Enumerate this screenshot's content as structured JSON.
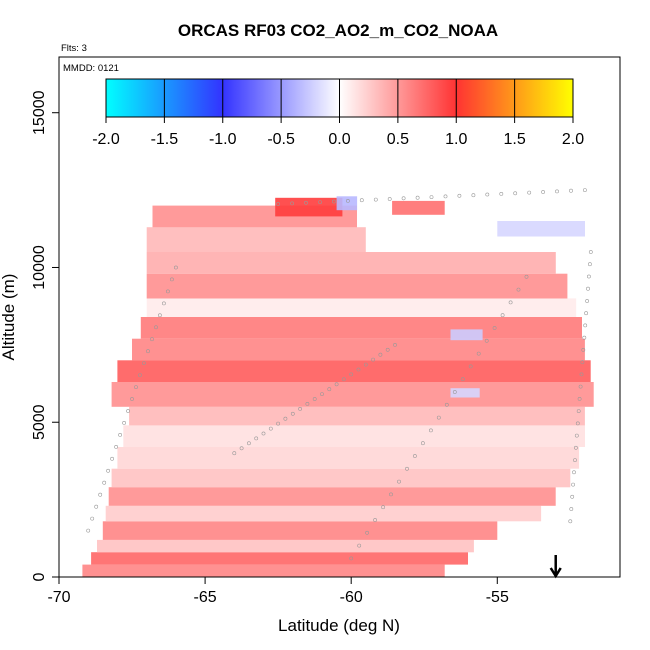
{
  "chart_data": {
    "type": "heatmap",
    "title": "ORCAS RF03 CO2_AO2_m_CO2_NOAA",
    "annotations": {
      "flights": "Flts: 3",
      "date": "MMDD: 0121"
    },
    "xlabel": "Latitude (deg N)",
    "ylabel": "Altitude (m)",
    "xlim": [
      -70,
      -50.8
    ],
    "ylim": [
      0,
      16800
    ],
    "x_ticks": [
      -70,
      -65,
      -60,
      -55
    ],
    "x_tick_labels": [
      "-70",
      "-65",
      "-60",
      "-55"
    ],
    "y_ticks": [
      0,
      5000,
      10000,
      15000
    ],
    "y_tick_labels": [
      "0",
      "5000",
      "10000",
      "15000"
    ],
    "colorbar": {
      "min": -2.0,
      "max": 2.0,
      "ticks": [
        -2.0,
        -1.5,
        -1.0,
        -0.5,
        0.0,
        0.5,
        1.0,
        1.5,
        2.0
      ],
      "tick_labels": [
        "-2.0",
        "-1.5",
        "-1.0",
        "-0.5",
        "0.0",
        "0.5",
        "1.0",
        "1.5",
        "2.0"
      ],
      "colors": [
        "#00ffff",
        "#3333ff",
        "#ffffff",
        "#ff3333",
        "#ffff00"
      ]
    },
    "grid": false,
    "marker": {
      "latitude": -53,
      "altitude": 0,
      "symbol": "down-arrow"
    },
    "bands": [
      {
        "alt_bottom": 0,
        "alt_top": 400,
        "lat_start": -69.2,
        "lat_end": -56.8,
        "value": 0.6
      },
      {
        "alt_bottom": 400,
        "alt_top": 800,
        "lat_start": -68.9,
        "lat_end": -56.0,
        "value": 0.75
      },
      {
        "alt_bottom": 800,
        "alt_top": 1200,
        "lat_start": -68.7,
        "lat_end": -55.8,
        "value": 0.3
      },
      {
        "alt_bottom": 1200,
        "alt_top": 1800,
        "lat_start": -68.5,
        "lat_end": -55.0,
        "value": 0.6
      },
      {
        "alt_bottom": 1800,
        "alt_top": 2300,
        "lat_start": -68.4,
        "lat_end": -53.5,
        "value": 0.25
      },
      {
        "alt_bottom": 2300,
        "alt_top": 2900,
        "lat_start": -68.3,
        "lat_end": -53.0,
        "value": 0.55
      },
      {
        "alt_bottom": 2900,
        "alt_top": 3500,
        "lat_start": -68.2,
        "lat_end": -52.5,
        "value": 0.3
      },
      {
        "alt_bottom": 3500,
        "alt_top": 4200,
        "lat_start": -68.0,
        "lat_end": -52.2,
        "value": 0.2
      },
      {
        "alt_bottom": 4200,
        "alt_top": 4900,
        "lat_start": -67.8,
        "lat_end": -52.0,
        "value": 0.15
      },
      {
        "alt_bottom": 4900,
        "alt_top": 5500,
        "lat_start": -67.6,
        "lat_end": -52.0,
        "value": 0.35
      },
      {
        "alt_bottom": 5500,
        "alt_top": 6300,
        "lat_start": -68.2,
        "lat_end": -51.7,
        "value": 0.55
      },
      {
        "alt_bottom": 6300,
        "alt_top": 7000,
        "lat_start": -68.0,
        "lat_end": -51.8,
        "value": 0.8
      },
      {
        "alt_bottom": 7000,
        "alt_top": 7700,
        "lat_start": -67.5,
        "lat_end": -52.0,
        "value": 0.6
      },
      {
        "alt_bottom": 7700,
        "alt_top": 8400,
        "lat_start": -67.2,
        "lat_end": -52.1,
        "value": 0.65
      },
      {
        "alt_bottom": 8400,
        "alt_top": 9000,
        "lat_start": -67.0,
        "lat_end": -52.3,
        "value": 0.1
      },
      {
        "alt_bottom": 9000,
        "alt_top": 9800,
        "lat_start": -67.0,
        "lat_end": -52.6,
        "value": 0.55
      },
      {
        "alt_bottom": 9800,
        "alt_top": 10500,
        "lat_start": -67.0,
        "lat_end": -53.0,
        "value": 0.4
      },
      {
        "alt_bottom": 10500,
        "alt_top": 11300,
        "lat_start": -67.0,
        "lat_end": -59.5,
        "value": 0.35
      },
      {
        "alt_bottom": 11300,
        "alt_top": 12000,
        "lat_start": -66.8,
        "lat_end": -59.8,
        "value": 0.55
      },
      {
        "alt_bottom": 11650,
        "alt_top": 12250,
        "lat_start": -62.6,
        "lat_end": -60.3,
        "value": 0.95
      },
      {
        "alt_bottom": 11700,
        "alt_top": 12150,
        "lat_start": -58.6,
        "lat_end": -56.8,
        "value": 0.7
      },
      {
        "alt_bottom": 11000,
        "alt_top": 11500,
        "lat_start": -55.0,
        "lat_end": -52.0,
        "value": -0.2
      },
      {
        "alt_bottom": 7650,
        "alt_top": 8000,
        "lat_start": -56.6,
        "lat_end": -55.5,
        "value": -0.25
      },
      {
        "alt_bottom": 5800,
        "alt_top": 6100,
        "lat_start": -56.6,
        "lat_end": -55.6,
        "value": -0.2
      },
      {
        "alt_bottom": 11850,
        "alt_top": 12300,
        "lat_start": -60.5,
        "lat_end": -59.8,
        "value": -0.35
      }
    ],
    "flight_tracks": [
      {
        "lat_start": -62.5,
        "lat_end": -52.0,
        "alt_start": 12050,
        "alt_end": 12500
      },
      {
        "lat_start": -69.0,
        "lat_end": -66.0,
        "alt_start": 1500,
        "alt_end": 10000
      },
      {
        "lat_start": -52.5,
        "lat_end": -51.8,
        "alt_start": 1800,
        "alt_end": 10500
      },
      {
        "lat_start": -64.0,
        "lat_end": -58.5,
        "alt_start": 4000,
        "alt_end": 7500
      },
      {
        "lat_start": -60.0,
        "lat_end": -54.0,
        "alt_start": 600,
        "alt_end": 9700
      }
    ]
  }
}
